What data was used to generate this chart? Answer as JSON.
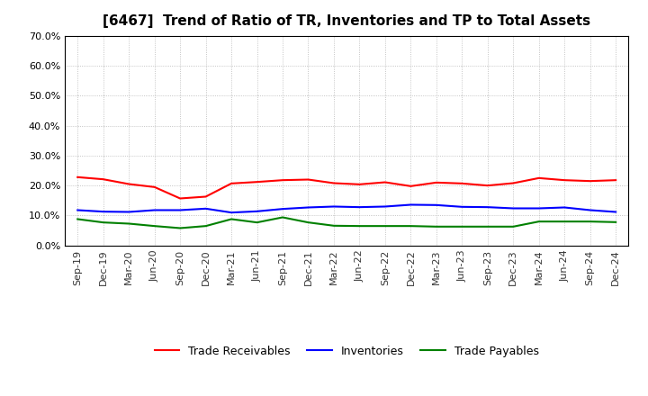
{
  "title": "[6467]  Trend of Ratio of TR, Inventories and TP to Total Assets",
  "x_labels": [
    "Sep-19",
    "Dec-19",
    "Mar-20",
    "Jun-20",
    "Sep-20",
    "Dec-20",
    "Mar-21",
    "Jun-21",
    "Sep-21",
    "Dec-21",
    "Mar-22",
    "Jun-22",
    "Sep-22",
    "Dec-22",
    "Mar-23",
    "Jun-23",
    "Sep-23",
    "Dec-23",
    "Mar-24",
    "Jun-24",
    "Sep-24",
    "Dec-24"
  ],
  "trade_receivables": [
    0.228,
    0.221,
    0.205,
    0.195,
    0.157,
    0.163,
    0.207,
    0.212,
    0.218,
    0.22,
    0.208,
    0.204,
    0.211,
    0.198,
    0.21,
    0.207,
    0.2,
    0.208,
    0.225,
    0.218,
    0.215,
    0.218
  ],
  "inventories": [
    0.118,
    0.113,
    0.112,
    0.118,
    0.118,
    0.123,
    0.11,
    0.114,
    0.122,
    0.127,
    0.13,
    0.128,
    0.13,
    0.136,
    0.135,
    0.129,
    0.128,
    0.124,
    0.124,
    0.127,
    0.118,
    0.112
  ],
  "trade_payables": [
    0.088,
    0.077,
    0.073,
    0.065,
    0.058,
    0.065,
    0.088,
    0.077,
    0.094,
    0.077,
    0.066,
    0.065,
    0.065,
    0.065,
    0.063,
    0.063,
    0.063,
    0.063,
    0.08,
    0.08,
    0.08,
    0.078
  ],
  "ylim": [
    0.0,
    0.7
  ],
  "yticks": [
    0.0,
    0.1,
    0.2,
    0.3,
    0.4,
    0.5,
    0.6,
    0.7
  ],
  "line_color_tr": "#FF0000",
  "line_color_inv": "#0000FF",
  "line_color_tp": "#008000",
  "legend_labels": [
    "Trade Receivables",
    "Inventories",
    "Trade Payables"
  ],
  "background_color": "#FFFFFF",
  "grid_color": "#999999",
  "title_fontsize": 11,
  "tick_fontsize": 8,
  "linewidth": 1.5
}
